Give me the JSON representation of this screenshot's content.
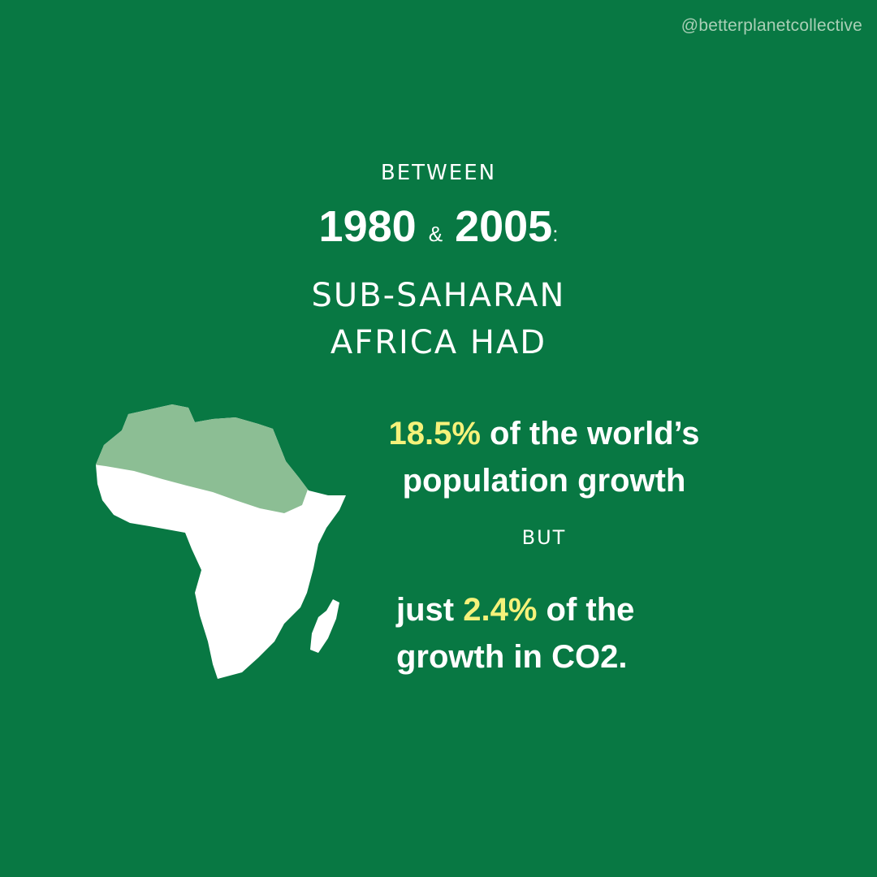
{
  "handle": "@betterplanetcollective",
  "heading": {
    "between": "BETWEEN",
    "start_year": "1980",
    "ampersand": "&",
    "end_year": "2005",
    "colon": ":",
    "lines": [
      "SUB-SAHARAN",
      "AFRICA HAD"
    ]
  },
  "statement_1": {
    "highlight": "18.5%",
    "rest": "of the world’s",
    "line_2": "population growth"
  },
  "connector": "BUT",
  "statement_2": {
    "lead": "just",
    "highlight": "2.4%",
    "rest": "of the",
    "line_2": "growth in CO2."
  }
}
